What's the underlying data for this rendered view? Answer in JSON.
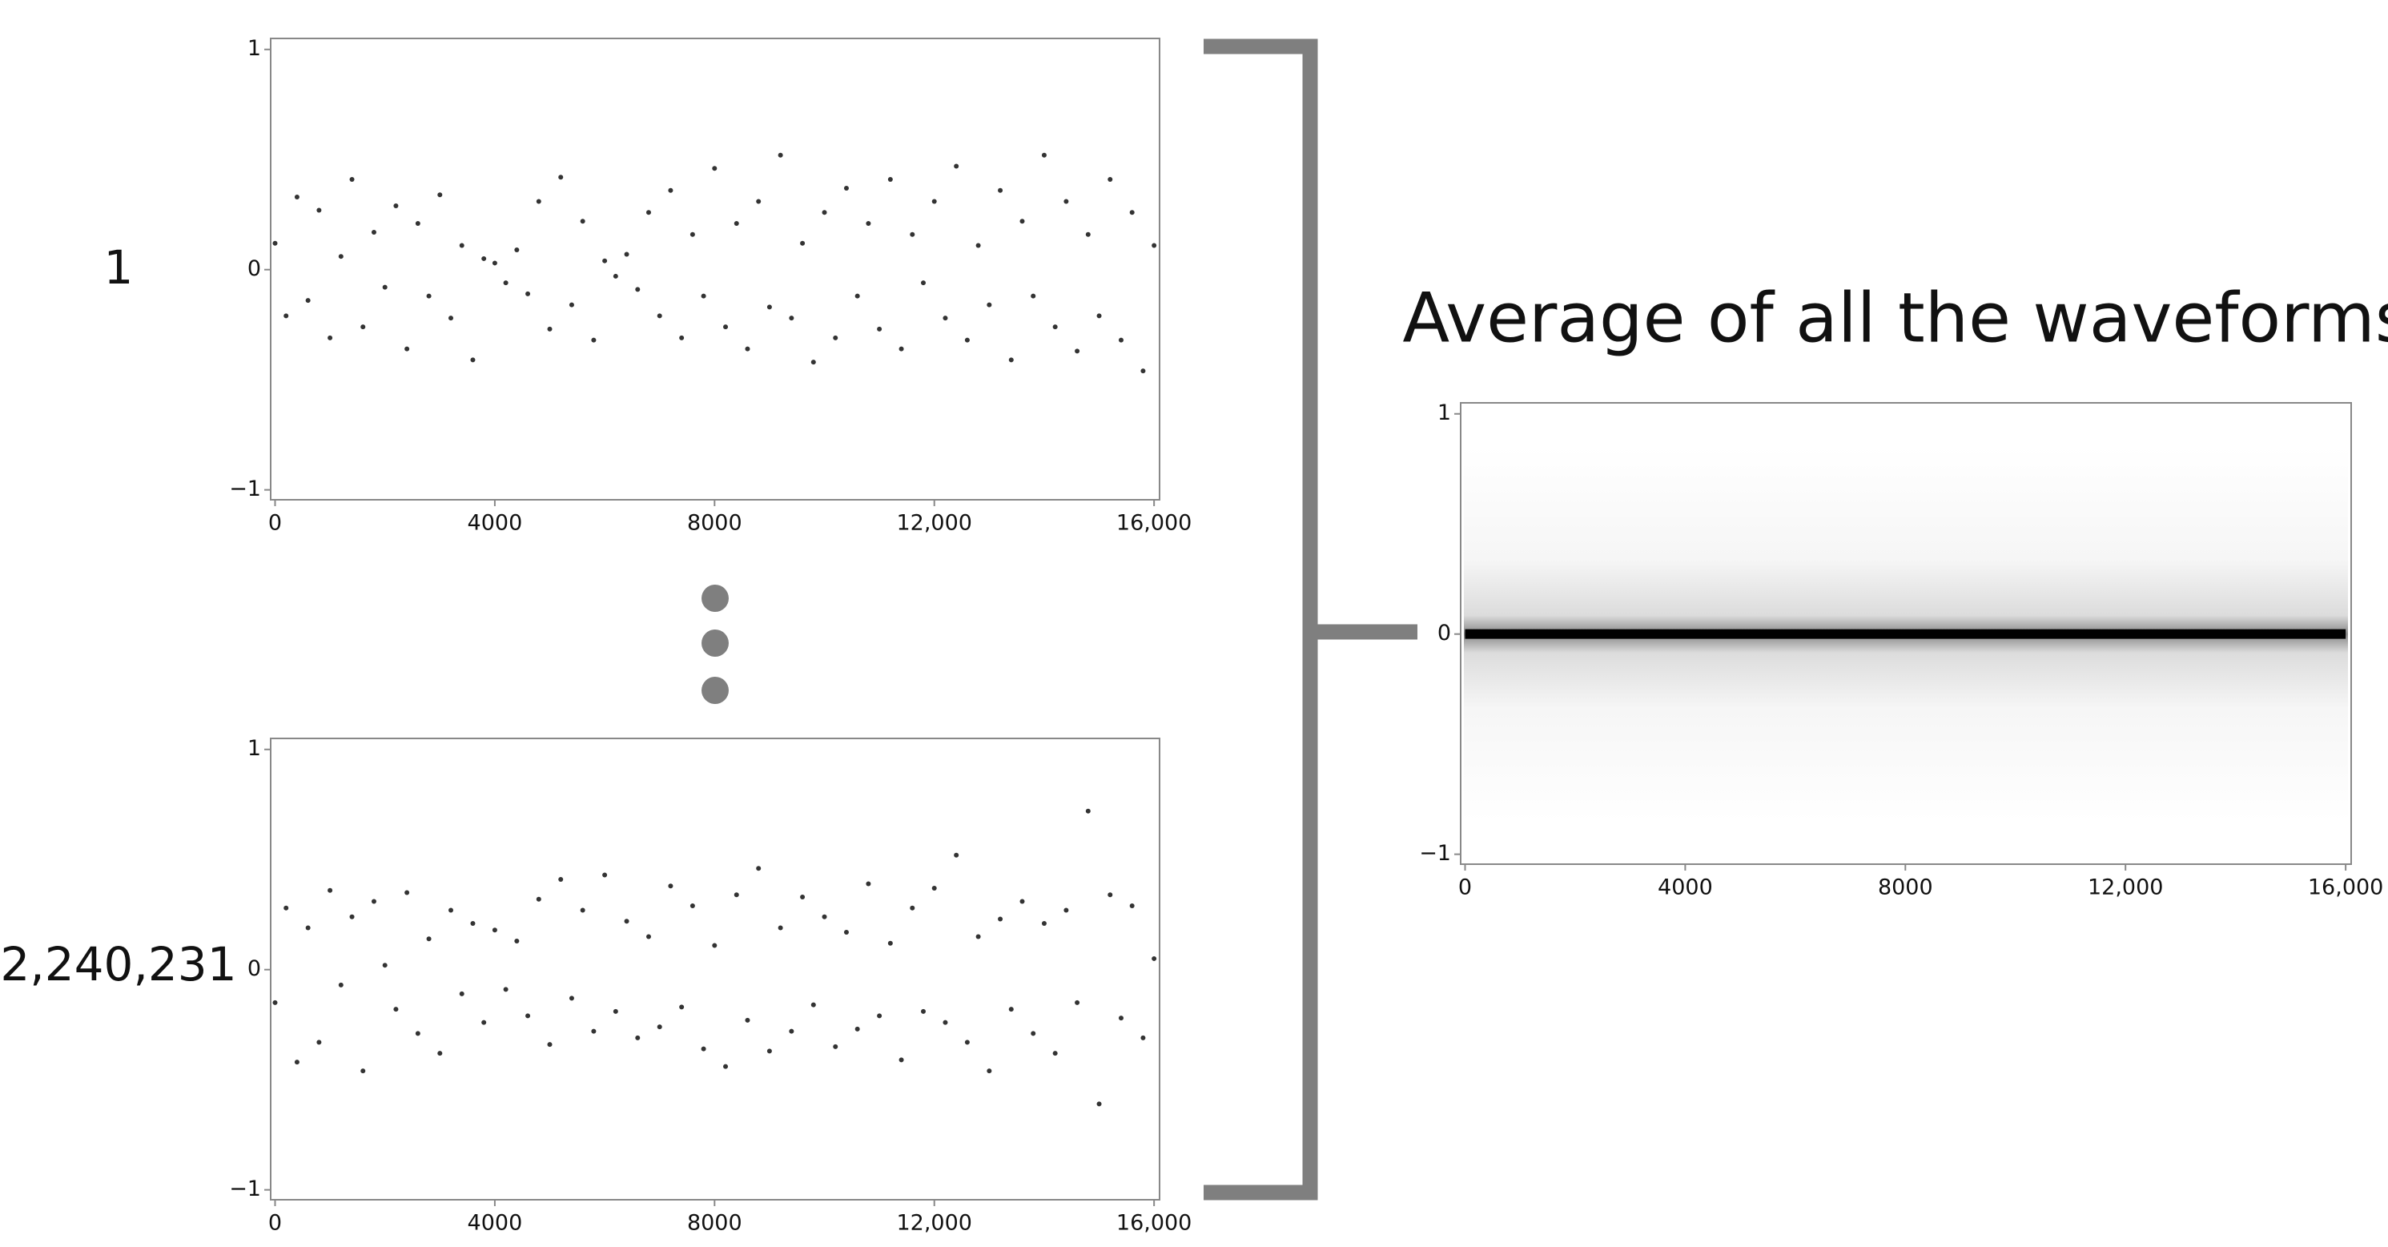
{
  "chart_data": [
    {
      "type": "scatter",
      "title": "1",
      "color": "#333333",
      "x": [
        0,
        200,
        400,
        600,
        800,
        1000,
        1200,
        1400,
        1600,
        1800,
        2000,
        2200,
        2400,
        2600,
        2800,
        3000,
        3200,
        3400,
        3600,
        3800,
        4000,
        4200,
        4400,
        4600,
        4800,
        5000,
        5200,
        5400,
        5600,
        5800,
        6000,
        6200,
        6400,
        6600,
        6800,
        7000,
        7200,
        7400,
        7600,
        7800,
        8000,
        8200,
        8400,
        8600,
        8800,
        9000,
        9200,
        9400,
        9600,
        9800,
        10000,
        10200,
        10400,
        10600,
        10800,
        11000,
        11200,
        11400,
        11600,
        11800,
        12000,
        12200,
        12400,
        12600,
        12800,
        13000,
        13200,
        13400,
        13600,
        13800,
        14000,
        14200,
        14400,
        14600,
        14800,
        15000,
        15200,
        15400,
        15600,
        15800,
        16000
      ],
      "values": [
        0.12,
        -0.21,
        0.33,
        -0.14,
        0.27,
        -0.31,
        0.06,
        0.41,
        -0.26,
        0.17,
        -0.08,
        0.29,
        -0.36,
        0.21,
        -0.12,
        0.34,
        -0.22,
        0.11,
        -0.41,
        0.05,
        0.03,
        -0.06,
        0.09,
        -0.11,
        0.31,
        -0.27,
        0.42,
        -0.16,
        0.22,
        -0.32,
        0.04,
        -0.03,
        0.07,
        -0.09,
        0.26,
        -0.21,
        0.36,
        -0.31,
        0.16,
        -0.12,
        0.46,
        -0.26,
        0.21,
        -0.36,
        0.31,
        -0.17,
        0.52,
        -0.22,
        0.12,
        -0.42,
        0.26,
        -0.31,
        0.37,
        -0.12,
        0.21,
        -0.27,
        0.41,
        -0.36,
        0.16,
        -0.06,
        0.31,
        -0.22,
        0.47,
        -0.32,
        0.11,
        -0.16,
        0.36,
        -0.41,
        0.22,
        -0.12,
        0.52,
        -0.26,
        0.31,
        -0.37,
        0.16,
        -0.21,
        0.41,
        -0.32,
        0.26,
        -0.46,
        0.11
      ],
      "xlim": [
        -80,
        16100
      ],
      "ylim": [
        -1.045,
        1.05
      ],
      "xticks": [
        0,
        4000,
        8000,
        {
          "value": 12000,
          "label": "12,000"
        },
        {
          "value": 16000,
          "label": "16,000"
        }
      ],
      "yticks": [
        {
          "value": -1,
          "label": "−1"
        },
        0,
        1
      ]
    },
    {
      "type": "scatter",
      "title": "2,240,231",
      "color": "#333333",
      "x": [
        0,
        200,
        400,
        600,
        800,
        1000,
        1200,
        1400,
        1600,
        1800,
        2000,
        2200,
        2400,
        2600,
        2800,
        3000,
        3200,
        3400,
        3600,
        3800,
        4000,
        4200,
        4400,
        4600,
        4800,
        5000,
        5200,
        5400,
        5600,
        5800,
        6000,
        6200,
        6400,
        6600,
        6800,
        7000,
        7200,
        7400,
        7600,
        7800,
        8000,
        8200,
        8400,
        8600,
        8800,
        9000,
        9200,
        9400,
        9600,
        9800,
        10000,
        10200,
        10400,
        10600,
        10800,
        11000,
        11200,
        11400,
        11600,
        11800,
        12000,
        12200,
        12400,
        12600,
        12800,
        13000,
        13200,
        13400,
        13600,
        13800,
        14000,
        14200,
        14400,
        14600,
        14800,
        15000,
        15200,
        15400,
        15600,
        15800,
        16000
      ],
      "values": [
        -0.15,
        0.28,
        -0.42,
        0.19,
        -0.33,
        0.36,
        -0.07,
        0.24,
        -0.46,
        0.31,
        0.02,
        -0.18,
        0.35,
        -0.29,
        0.14,
        -0.38,
        0.27,
        -0.11,
        0.21,
        -0.24,
        0.18,
        -0.09,
        0.13,
        -0.21,
        0.32,
        -0.34,
        0.41,
        -0.13,
        0.27,
        -0.28,
        0.43,
        -0.19,
        0.22,
        -0.31,
        0.15,
        -0.26,
        0.38,
        -0.17,
        0.29,
        -0.36,
        0.11,
        -0.44,
        0.34,
        -0.23,
        0.46,
        -0.37,
        0.19,
        -0.28,
        0.33,
        -0.16,
        0.24,
        -0.35,
        0.17,
        -0.27,
        0.39,
        -0.21,
        0.12,
        -0.41,
        0.28,
        -0.19,
        0.37,
        -0.24,
        0.52,
        -0.33,
        0.15,
        -0.46,
        0.23,
        -0.18,
        0.31,
        -0.29,
        0.21,
        -0.38,
        0.27,
        -0.15,
        0.72,
        -0.61,
        0.34,
        -0.22,
        0.29,
        -0.31,
        0.05
      ],
      "xlim": [
        -80,
        16100
      ],
      "ylim": [
        -1.045,
        1.05
      ],
      "xticks": [
        0,
        4000,
        8000,
        {
          "value": 12000,
          "label": "12,000"
        },
        {
          "value": 16000,
          "label": "16,000"
        }
      ],
      "yticks": [
        {
          "value": -1,
          "label": "−1"
        },
        0,
        1
      ]
    },
    {
      "type": "line",
      "title": "Average of all the waveforms",
      "color": "#000000",
      "x": [
        0,
        4000,
        8000,
        12000,
        16000
      ],
      "values": [
        0,
        0,
        0,
        0,
        0
      ],
      "xlim": [
        -80,
        16100
      ],
      "ylim": [
        -1.045,
        1.05
      ],
      "xticks": [
        0,
        4000,
        8000,
        {
          "value": 12000,
          "label": "12,000"
        },
        {
          "value": 16000,
          "label": "16,000"
        }
      ],
      "yticks": [
        {
          "value": -1,
          "label": "−1"
        },
        0,
        1
      ]
    }
  ]
}
